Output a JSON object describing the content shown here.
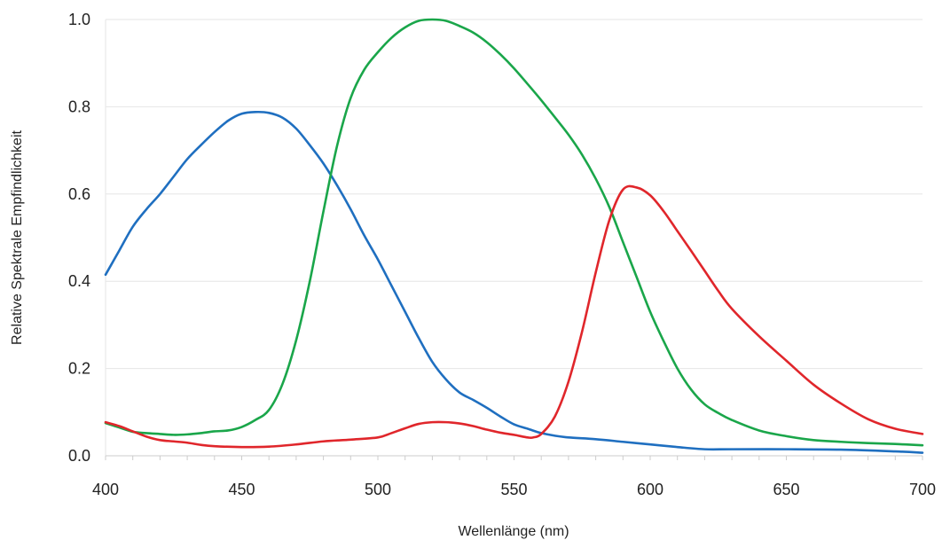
{
  "chart_data": {
    "type": "line",
    "title": "",
    "xlabel": "Wellenlänge (nm)",
    "ylabel": "Relative Spektrale Empfindlichkeit",
    "xlim": [
      400,
      700
    ],
    "ylim": [
      0,
      1.0
    ],
    "x_ticks": [
      400,
      450,
      500,
      550,
      600,
      650,
      700
    ],
    "y_ticks": [
      0.0,
      0.2,
      0.4,
      0.6,
      0.8,
      1.0
    ],
    "x_tick_labels": [
      "400",
      "450",
      "500",
      "550",
      "600",
      "650",
      "700"
    ],
    "y_tick_labels": [
      "0.0",
      "0.2",
      "0.4",
      "0.6",
      "0.8",
      "1.0"
    ],
    "grid": {
      "horizontal": true,
      "vertical": false
    },
    "legend": "none",
    "series": [
      {
        "color": "#1f6fc0",
        "points": [
          [
            400,
            0.415
          ],
          [
            405,
            0.47
          ],
          [
            410,
            0.525
          ],
          [
            415,
            0.565
          ],
          [
            420,
            0.6
          ],
          [
            425,
            0.64
          ],
          [
            430,
            0.68
          ],
          [
            435,
            0.712
          ],
          [
            440,
            0.742
          ],
          [
            445,
            0.768
          ],
          [
            450,
            0.784
          ],
          [
            455,
            0.788
          ],
          [
            460,
            0.786
          ],
          [
            465,
            0.775
          ],
          [
            470,
            0.75
          ],
          [
            475,
            0.712
          ],
          [
            480,
            0.67
          ],
          [
            485,
            0.62
          ],
          [
            490,
            0.565
          ],
          [
            495,
            0.505
          ],
          [
            500,
            0.45
          ],
          [
            505,
            0.39
          ],
          [
            510,
            0.33
          ],
          [
            515,
            0.27
          ],
          [
            520,
            0.215
          ],
          [
            525,
            0.175
          ],
          [
            530,
            0.145
          ],
          [
            535,
            0.128
          ],
          [
            540,
            0.11
          ],
          [
            545,
            0.09
          ],
          [
            550,
            0.072
          ],
          [
            555,
            0.062
          ],
          [
            560,
            0.052
          ],
          [
            565,
            0.046
          ],
          [
            570,
            0.042
          ],
          [
            580,
            0.038
          ],
          [
            590,
            0.032
          ],
          [
            600,
            0.026
          ],
          [
            610,
            0.02
          ],
          [
            620,
            0.015
          ],
          [
            630,
            0.015
          ],
          [
            650,
            0.015
          ],
          [
            670,
            0.014
          ],
          [
            690,
            0.01
          ],
          [
            700,
            0.007
          ]
        ]
      },
      {
        "color": "#1aa64a",
        "points": [
          [
            400,
            0.075
          ],
          [
            405,
            0.065
          ],
          [
            410,
            0.055
          ],
          [
            415,
            0.052
          ],
          [
            420,
            0.05
          ],
          [
            425,
            0.048
          ],
          [
            430,
            0.049
          ],
          [
            435,
            0.052
          ],
          [
            440,
            0.056
          ],
          [
            445,
            0.058
          ],
          [
            450,
            0.066
          ],
          [
            455,
            0.082
          ],
          [
            460,
            0.105
          ],
          [
            465,
            0.165
          ],
          [
            470,
            0.265
          ],
          [
            475,
            0.4
          ],
          [
            480,
            0.56
          ],
          [
            485,
            0.71
          ],
          [
            490,
            0.82
          ],
          [
            495,
            0.885
          ],
          [
            500,
            0.925
          ],
          [
            505,
            0.958
          ],
          [
            510,
            0.982
          ],
          [
            515,
            0.997
          ],
          [
            520,
            1.0
          ],
          [
            525,
            0.997
          ],
          [
            530,
            0.985
          ],
          [
            535,
            0.97
          ],
          [
            540,
            0.948
          ],
          [
            545,
            0.92
          ],
          [
            550,
            0.888
          ],
          [
            555,
            0.852
          ],
          [
            560,
            0.815
          ],
          [
            565,
            0.776
          ],
          [
            570,
            0.736
          ],
          [
            575,
            0.69
          ],
          [
            580,
            0.635
          ],
          [
            585,
            0.57
          ],
          [
            590,
            0.49
          ],
          [
            595,
            0.41
          ],
          [
            600,
            0.33
          ],
          [
            605,
            0.262
          ],
          [
            610,
            0.2
          ],
          [
            615,
            0.152
          ],
          [
            620,
            0.118
          ],
          [
            625,
            0.098
          ],
          [
            630,
            0.082
          ],
          [
            640,
            0.058
          ],
          [
            650,
            0.045
          ],
          [
            660,
            0.036
          ],
          [
            670,
            0.032
          ],
          [
            680,
            0.029
          ],
          [
            690,
            0.027
          ],
          [
            700,
            0.024
          ]
        ]
      },
      {
        "color": "#e0262b",
        "points": [
          [
            400,
            0.077
          ],
          [
            405,
            0.068
          ],
          [
            410,
            0.056
          ],
          [
            415,
            0.044
          ],
          [
            420,
            0.036
          ],
          [
            425,
            0.033
          ],
          [
            430,
            0.03
          ],
          [
            435,
            0.025
          ],
          [
            440,
            0.022
          ],
          [
            450,
            0.02
          ],
          [
            460,
            0.021
          ],
          [
            470,
            0.026
          ],
          [
            480,
            0.033
          ],
          [
            490,
            0.037
          ],
          [
            500,
            0.042
          ],
          [
            505,
            0.052
          ],
          [
            510,
            0.063
          ],
          [
            515,
            0.073
          ],
          [
            520,
            0.077
          ],
          [
            525,
            0.077
          ],
          [
            530,
            0.074
          ],
          [
            535,
            0.068
          ],
          [
            540,
            0.06
          ],
          [
            545,
            0.053
          ],
          [
            550,
            0.048
          ],
          [
            555,
            0.042
          ],
          [
            557,
            0.042
          ],
          [
            560,
            0.05
          ],
          [
            565,
            0.09
          ],
          [
            570,
            0.17
          ],
          [
            575,
            0.285
          ],
          [
            580,
            0.42
          ],
          [
            585,
            0.54
          ],
          [
            590,
            0.61
          ],
          [
            595,
            0.615
          ],
          [
            600,
            0.597
          ],
          [
            605,
            0.56
          ],
          [
            610,
            0.515
          ],
          [
            615,
            0.47
          ],
          [
            620,
            0.424
          ],
          [
            625,
            0.378
          ],
          [
            630,
            0.337
          ],
          [
            640,
            0.274
          ],
          [
            650,
            0.218
          ],
          [
            660,
            0.163
          ],
          [
            670,
            0.12
          ],
          [
            680,
            0.084
          ],
          [
            690,
            0.062
          ],
          [
            700,
            0.05
          ]
        ]
      }
    ]
  }
}
